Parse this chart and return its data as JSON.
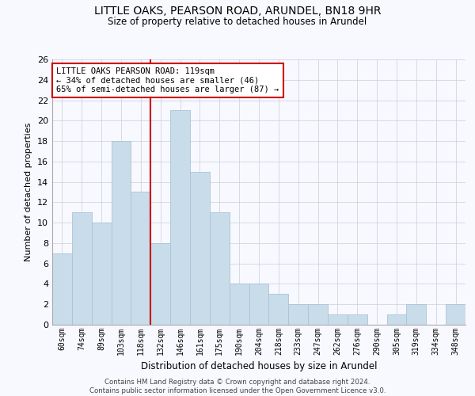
{
  "title": "LITTLE OAKS, PEARSON ROAD, ARUNDEL, BN18 9HR",
  "subtitle": "Size of property relative to detached houses in Arundel",
  "xlabel": "Distribution of detached houses by size in Arundel",
  "ylabel": "Number of detached properties",
  "bar_labels": [
    "60sqm",
    "74sqm",
    "89sqm",
    "103sqm",
    "118sqm",
    "132sqm",
    "146sqm",
    "161sqm",
    "175sqm",
    "190sqm",
    "204sqm",
    "218sqm",
    "233sqm",
    "247sqm",
    "262sqm",
    "276sqm",
    "290sqm",
    "305sqm",
    "319sqm",
    "334sqm",
    "348sqm"
  ],
  "bar_values": [
    7,
    11,
    10,
    18,
    13,
    8,
    21,
    15,
    11,
    4,
    4,
    3,
    2,
    2,
    1,
    1,
    0,
    1,
    2,
    0,
    2
  ],
  "bar_color": "#c9dcea",
  "bar_edge_color": "#a8c4d8",
  "highlight_line_color": "#cc0000",
  "annotation_title": "LITTLE OAKS PEARSON ROAD: 119sqm",
  "annotation_line1": "← 34% of detached houses are smaller (46)",
  "annotation_line2": "65% of semi-detached houses are larger (87) →",
  "annotation_box_color": "#ffffff",
  "annotation_box_edge": "#cc0000",
  "ylim": [
    0,
    26
  ],
  "yticks": [
    0,
    2,
    4,
    6,
    8,
    10,
    12,
    14,
    16,
    18,
    20,
    22,
    24,
    26
  ],
  "background_color": "#f8f8ff",
  "grid_color": "#c8d0d8",
  "title_fontsize": 10,
  "footer_line1": "Contains HM Land Registry data © Crown copyright and database right 2024.",
  "footer_line2": "Contains public sector information licensed under the Open Government Licence v3.0."
}
